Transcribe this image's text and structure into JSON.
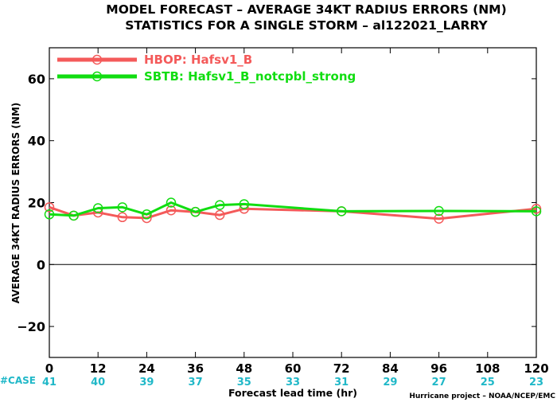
{
  "chart_data": {
    "type": "line",
    "title": "MODEL FORECAST – AVERAGE 34KT RADIUS ERRORS (NM)",
    "subtitle": "STATISTICS FOR A SINGLE STORM – al122021_LARRY",
    "xlabel": "Forecast lead time (hr)",
    "ylabel": "AVERAGE 34KT RADIUS ERRORS (NM)",
    "xlim": [
      0,
      120
    ],
    "ylim": [
      -30,
      70
    ],
    "xticks": [
      0,
      12,
      24,
      36,
      48,
      60,
      72,
      84,
      96,
      108,
      120
    ],
    "yticks": [
      -20,
      0,
      20,
      40,
      60
    ],
    "grid": false,
    "zero_line": true,
    "legend_position": "top-left",
    "series": [
      {
        "name": "HBOP: Hafsv1_B",
        "color": "#f45a5a",
        "marker": "circle",
        "x": [
          0,
          6,
          12,
          18,
          24,
          30,
          36,
          42,
          48,
          72,
          96,
          120
        ],
        "y": [
          18.5,
          15.8,
          16.8,
          15.3,
          15.0,
          17.5,
          17.0,
          16.0,
          18.0,
          17.2,
          14.8,
          18.0
        ]
      },
      {
        "name": "SBTB: Hafsv1_B_notcpbl_strong",
        "color": "#11dd11",
        "marker": "circle",
        "x": [
          0,
          6,
          12,
          18,
          24,
          30,
          36,
          42,
          48,
          72,
          96,
          120
        ],
        "y": [
          16.2,
          15.8,
          18.2,
          18.5,
          16.2,
          20.0,
          17.0,
          19.2,
          19.5,
          17.2,
          17.3,
          17.2
        ]
      }
    ],
    "case_row": {
      "label": "#CASE",
      "x": [
        0,
        12,
        24,
        36,
        48,
        60,
        72,
        84,
        96,
        108,
        120
      ],
      "values": [
        "41",
        "40",
        "39",
        "37",
        "35",
        "33",
        "31",
        "29",
        "27",
        "25",
        "23"
      ],
      "color": "#20b8c8"
    },
    "credit": "Hurricane project – NOAA/NCEP/EMC"
  }
}
